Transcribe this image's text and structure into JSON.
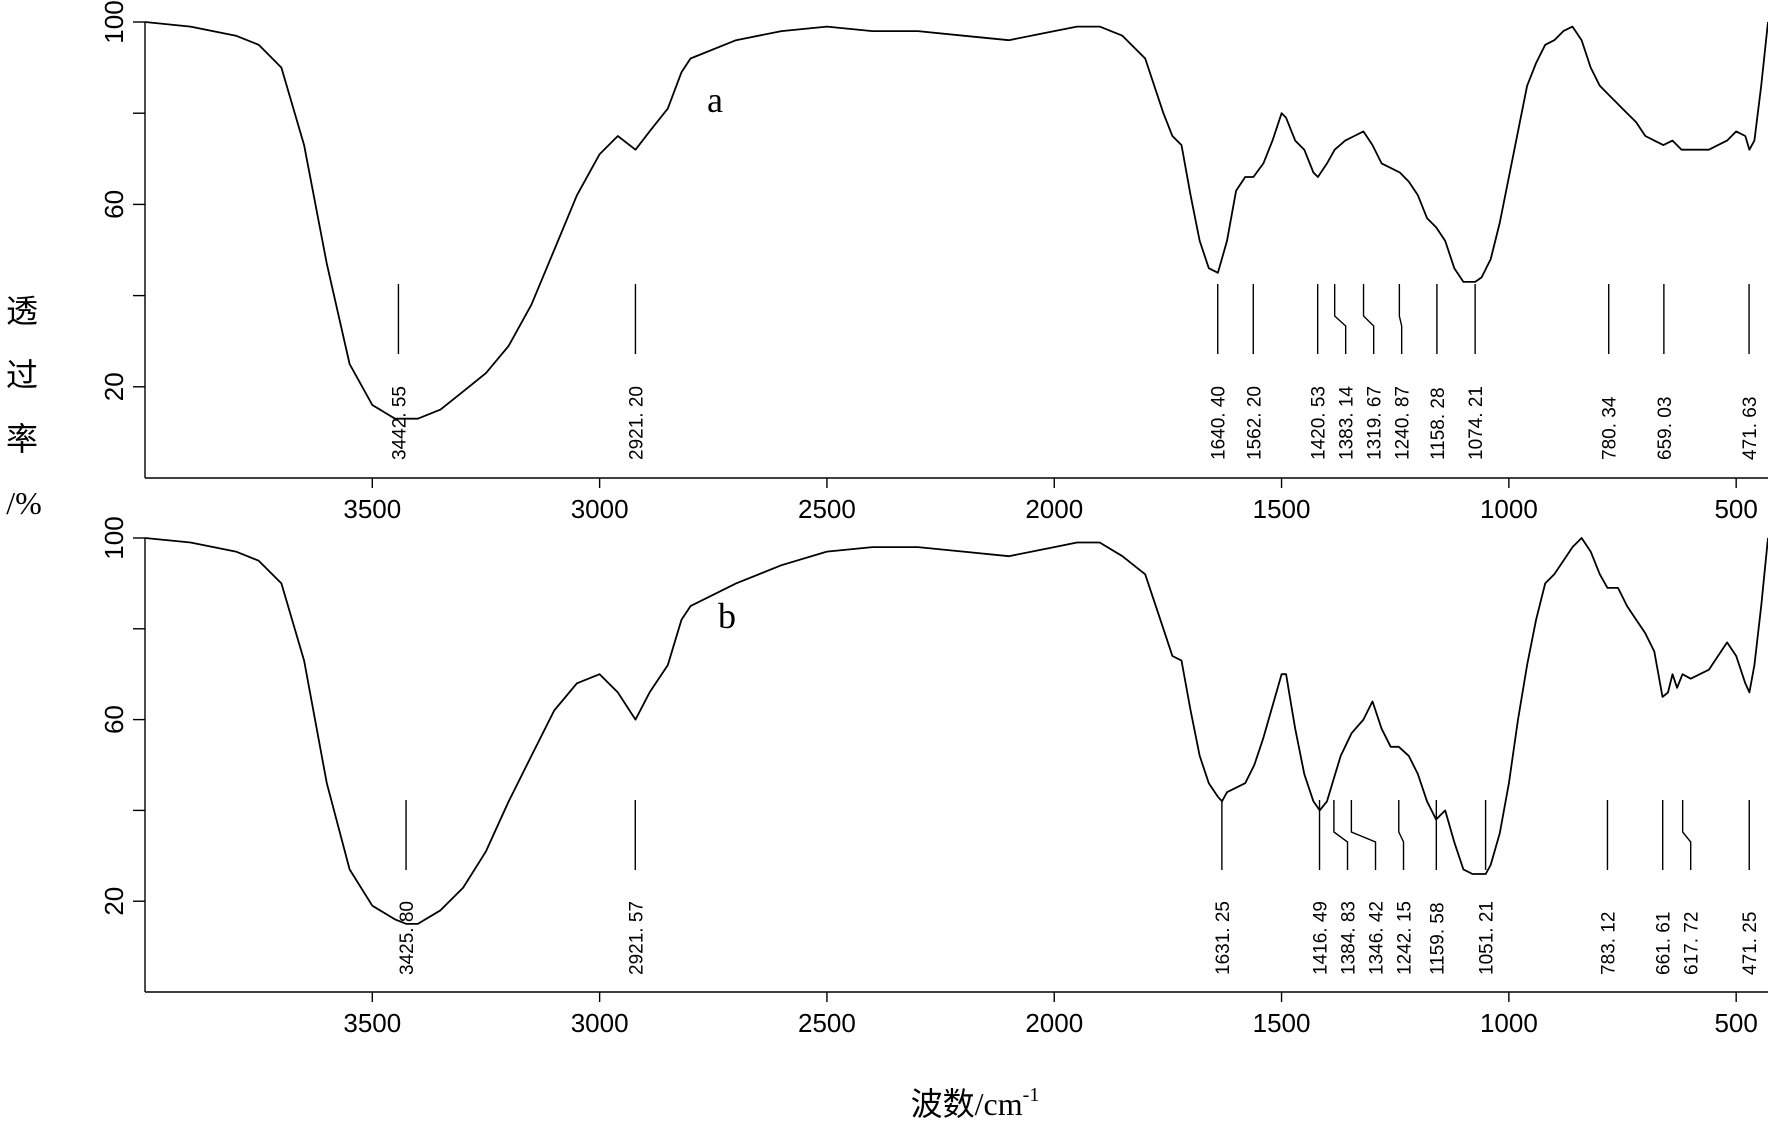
{
  "figure": {
    "ylabel_chars": [
      "透",
      "过",
      "率",
      "/%"
    ],
    "xlabel_main": "波数/cm",
    "xlabel_sup": "-1"
  },
  "chart_data": [
    {
      "type": "line",
      "panel_label": "a",
      "xlim": [
        4000,
        430
      ],
      "ylim": [
        0,
        100
      ],
      "x_ticks": [
        3500,
        3000,
        2500,
        2000,
        1500,
        1000,
        500
      ],
      "y_tick_labels": [
        20,
        60,
        100
      ],
      "y_minor_ticks": [
        40,
        80
      ],
      "series": [
        {
          "x": [
            4000,
            3900,
            3800,
            3750,
            3700,
            3650,
            3600,
            3550,
            3500,
            3450,
            3400,
            3350,
            3300,
            3250,
            3200,
            3150,
            3100,
            3050,
            3000,
            2960,
            2921,
            2890,
            2850,
            2820,
            2800,
            2700,
            2600,
            2500,
            2400,
            2300,
            2200,
            2100,
            2000,
            1950,
            1900,
            1850,
            1800,
            1760,
            1740,
            1720,
            1700,
            1680,
            1660,
            1640,
            1620,
            1600,
            1580,
            1562,
            1540,
            1520,
            1500,
            1490,
            1470,
            1450,
            1430,
            1420,
            1400,
            1383,
            1360,
            1340,
            1320,
            1300,
            1280,
            1260,
            1240,
            1220,
            1200,
            1180,
            1160,
            1140,
            1120,
            1100,
            1074,
            1060,
            1040,
            1020,
            1000,
            980,
            960,
            940,
            920,
            900,
            880,
            860,
            840,
            820,
            800,
            780,
            760,
            740,
            720,
            700,
            680,
            660,
            640,
            620,
            600,
            580,
            560,
            540,
            520,
            500,
            480,
            471,
            460,
            445,
            430
          ],
          "y": [
            100,
            99,
            97,
            95,
            90,
            73,
            47,
            25,
            16,
            13,
            13,
            15,
            19,
            23,
            29,
            38,
            50,
            62,
            71,
            75,
            72,
            76,
            81,
            89,
            92,
            96,
            98,
            99,
            98,
            98,
            97,
            96,
            98,
            99,
            99,
            97,
            92,
            80,
            75,
            73,
            62,
            52,
            46,
            45,
            52,
            63,
            66,
            66,
            69,
            74,
            80,
            79,
            74,
            72,
            67,
            66,
            69,
            72,
            74,
            75,
            76,
            73,
            69,
            68,
            67,
            65,
            62,
            57,
            55,
            52,
            46,
            43,
            43,
            44,
            48,
            56,
            66,
            76,
            86,
            91,
            95,
            96,
            98,
            99,
            96,
            90,
            86,
            84,
            82,
            80,
            78,
            75,
            74,
            73,
            74,
            72,
            72,
            72,
            72,
            73,
            74,
            76,
            75,
            72,
            74,
            86,
            100
          ]
        }
      ],
      "peak_labels": [
        "3442. 55",
        "2921. 20",
        "1640. 40",
        "1562. 20",
        "1420. 53",
        "1383. 14",
        "1319. 67",
        "1240. 87",
        "1158. 28",
        "1074. 21",
        "780. 34",
        "659. 03",
        "471. 63"
      ],
      "peak_positions": [
        3442.55,
        2921.2,
        1640.4,
        1562.2,
        1420.53,
        1383.14,
        1319.67,
        1240.87,
        1158.28,
        1074.21,
        780.34,
        659.03,
        471.63
      ]
    },
    {
      "type": "line",
      "panel_label": "b",
      "xlim": [
        4000,
        430
      ],
      "ylim": [
        0,
        100
      ],
      "x_ticks": [
        3500,
        3000,
        2500,
        2000,
        1500,
        1000,
        500
      ],
      "y_tick_labels": [
        20,
        60,
        100
      ],
      "y_minor_ticks": [
        40,
        80
      ],
      "series": [
        {
          "x": [
            4000,
            3900,
            3800,
            3750,
            3700,
            3650,
            3600,
            3550,
            3500,
            3450,
            3425,
            3400,
            3350,
            3300,
            3250,
            3200,
            3150,
            3100,
            3050,
            3000,
            2960,
            2921,
            2890,
            2850,
            2820,
            2800,
            2700,
            2600,
            2500,
            2400,
            2300,
            2200,
            2100,
            2000,
            1950,
            1900,
            1850,
            1800,
            1760,
            1740,
            1720,
            1700,
            1680,
            1660,
            1640,
            1631,
            1620,
            1600,
            1580,
            1560,
            1540,
            1520,
            1500,
            1490,
            1480,
            1470,
            1450,
            1430,
            1416,
            1400,
            1385,
            1370,
            1346,
            1320,
            1300,
            1280,
            1260,
            1242,
            1220,
            1200,
            1180,
            1160,
            1140,
            1120,
            1100,
            1080,
            1051,
            1040,
            1020,
            1000,
            980,
            960,
            940,
            920,
            900,
            880,
            860,
            840,
            820,
            800,
            783,
            760,
            740,
            720,
            700,
            680,
            662,
            650,
            640,
            630,
            618,
            600,
            580,
            560,
            540,
            520,
            500,
            480,
            471,
            460,
            445,
            430
          ],
          "y": [
            100,
            99,
            97,
            95,
            90,
            73,
            46,
            27,
            19,
            16,
            15,
            15,
            18,
            23,
            31,
            42,
            52,
            62,
            68,
            70,
            66,
            60,
            66,
            72,
            82,
            85,
            90,
            94,
            97,
            98,
            98,
            97,
            96,
            98,
            99,
            99,
            96,
            92,
            80,
            74,
            73,
            62,
            52,
            46,
            43,
            42,
            44,
            45,
            46,
            50,
            56,
            63,
            70,
            70,
            64,
            58,
            48,
            42,
            40,
            42,
            47,
            52,
            57,
            60,
            64,
            58,
            54,
            54,
            52,
            48,
            42,
            38,
            40,
            33,
            27,
            26,
            26,
            28,
            35,
            46,
            60,
            72,
            82,
            90,
            92,
            95,
            98,
            100,
            97,
            92,
            89,
            89,
            85,
            82,
            79,
            75,
            65,
            66,
            70,
            67,
            70,
            69,
            70,
            71,
            74,
            77,
            74,
            68,
            66,
            72,
            85,
            100
          ]
        }
      ],
      "peak_labels": [
        "3425. 80",
        "2921. 57",
        "1631. 25",
        "1416. 49",
        "1384. 83",
        "1346. 42",
        "1242. 15",
        "1159. 58",
        "1051. 21",
        "783. 12",
        "661. 61",
        "617. 72",
        "471. 25"
      ],
      "peak_positions": [
        3425.8,
        2921.57,
        1631.25,
        1416.49,
        1384.83,
        1346.42,
        1242.15,
        1159.58,
        1051.21,
        783.12,
        661.61,
        617.72,
        471.25
      ]
    }
  ]
}
